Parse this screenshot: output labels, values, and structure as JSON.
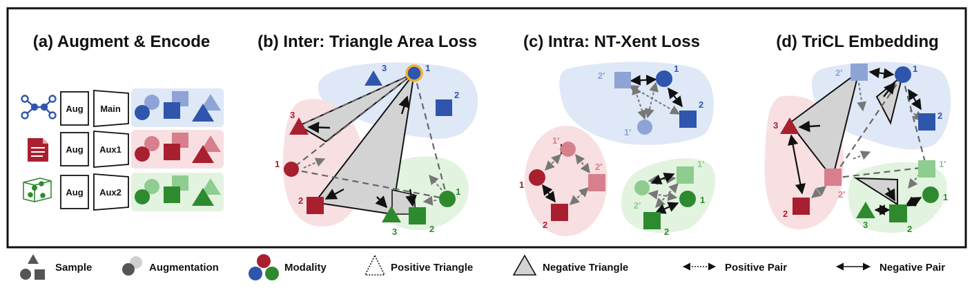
{
  "panels": {
    "a": {
      "title": "(a) Augment & Encode",
      "aug_label": "Aug",
      "encoders": [
        "Main",
        "Aux1",
        "Aux2"
      ]
    },
    "b": {
      "title": "(b) Inter: Triangle Area Loss"
    },
    "c": {
      "title": "(c) Intra: NT-Xent Loss"
    },
    "d": {
      "title": "(d) TriCL Embedding"
    }
  },
  "labels": {
    "n1": "1",
    "n2": "2",
    "n3": "3",
    "p1": "1′",
    "p2": "2′"
  },
  "legend": {
    "sample": "Sample",
    "augmentation": "Augmentation",
    "modality": "Modality",
    "positive_triangle": "Positive Triangle",
    "negative_triangle": "Negative Triangle",
    "positive_pair": "Positive Pair",
    "negative_pair": "Negative Pair"
  },
  "colors": {
    "blue": "#2f55ad",
    "blue_light": "#8ea4d6",
    "blue_bg": "#dfe8f7",
    "red": "#a8202f",
    "red_light": "#d77f8c",
    "red_bg": "#f8dfe2",
    "green": "#2e8a2e",
    "green_light": "#8fcc8f",
    "green_bg": "#e2f3df",
    "gray_fill": "#d3d3d3",
    "highlight": "#f0b030"
  },
  "icons": [
    "graph-icon",
    "document-icon",
    "3d-molecule-icon"
  ]
}
